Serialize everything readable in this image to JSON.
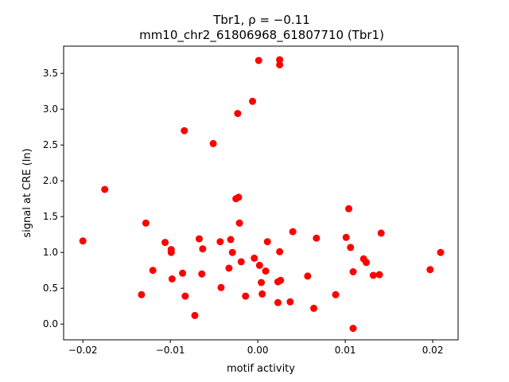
{
  "chart_data": {
    "type": "scatter",
    "title_line1": "Tbr1, ρ = −0.11",
    "title_line2": "mm10_chr2_61806968_61807710 (Tbr1)",
    "xlabel": "motif activity",
    "ylabel": "signal at CRE (ln)",
    "xlim": [
      -0.0222,
      0.0229
    ],
    "ylim": [
      -0.22,
      3.88
    ],
    "xticks": [
      {
        "value": -0.02,
        "label": "−0.02"
      },
      {
        "value": -0.01,
        "label": "−0.01"
      },
      {
        "value": 0.0,
        "label": "0.00"
      },
      {
        "value": 0.01,
        "label": "0.01"
      },
      {
        "value": 0.02,
        "label": "0.02"
      }
    ],
    "yticks": [
      {
        "value": 0.0,
        "label": "0.0"
      },
      {
        "value": 0.5,
        "label": "0.5"
      },
      {
        "value": 1.0,
        "label": "1.0"
      },
      {
        "value": 1.5,
        "label": "1.5"
      },
      {
        "value": 2.0,
        "label": "2.0"
      },
      {
        "value": 2.5,
        "label": "2.5"
      },
      {
        "value": 3.0,
        "label": "3.0"
      },
      {
        "value": 3.5,
        "label": "3.5"
      }
    ],
    "grid": false,
    "marker_color": "#ff0000",
    "points": [
      {
        "x": -0.02,
        "y": 1.16
      },
      {
        "x": -0.0175,
        "y": 1.88
      },
      {
        "x": -0.0133,
        "y": 0.41
      },
      {
        "x": -0.0128,
        "y": 1.41
      },
      {
        "x": -0.012,
        "y": 0.75
      },
      {
        "x": -0.0106,
        "y": 1.14
      },
      {
        "x": -0.0099,
        "y": 1.04
      },
      {
        "x": -0.0099,
        "y": 1.0
      },
      {
        "x": -0.0098,
        "y": 0.63
      },
      {
        "x": -0.0086,
        "y": 0.71
      },
      {
        "x": -0.0083,
        "y": 0.39
      },
      {
        "x": -0.0084,
        "y": 2.7
      },
      {
        "x": -0.0072,
        "y": 0.12
      },
      {
        "x": -0.0067,
        "y": 1.19
      },
      {
        "x": -0.0064,
        "y": 0.7
      },
      {
        "x": -0.0063,
        "y": 1.05
      },
      {
        "x": -0.0051,
        "y": 2.52
      },
      {
        "x": -0.0043,
        "y": 1.15
      },
      {
        "x": -0.0042,
        "y": 0.51
      },
      {
        "x": -0.0033,
        "y": 0.78
      },
      {
        "x": -0.0031,
        "y": 1.18
      },
      {
        "x": -0.0029,
        "y": 1.0
      },
      {
        "x": -0.0025,
        "y": 1.75
      },
      {
        "x": -0.0022,
        "y": 1.77
      },
      {
        "x": -0.0023,
        "y": 2.94
      },
      {
        "x": -0.0021,
        "y": 1.41
      },
      {
        "x": -0.0019,
        "y": 0.87
      },
      {
        "x": -0.0014,
        "y": 0.39
      },
      {
        "x": -0.0006,
        "y": 3.11
      },
      {
        "x": -0.0004,
        "y": 0.92
      },
      {
        "x": 0.0001,
        "y": 3.68
      },
      {
        "x": 0.0002,
        "y": 0.82
      },
      {
        "x": 0.0004,
        "y": 0.58
      },
      {
        "x": 0.0005,
        "y": 0.42
      },
      {
        "x": 0.0009,
        "y": 0.74
      },
      {
        "x": 0.0011,
        "y": 1.15
      },
      {
        "x": 0.0023,
        "y": 0.3
      },
      {
        "x": 0.0023,
        "y": 0.59
      },
      {
        "x": 0.0025,
        "y": 1.01
      },
      {
        "x": 0.0026,
        "y": 0.61
      },
      {
        "x": 0.0025,
        "y": 3.69
      },
      {
        "x": 0.0025,
        "y": 3.62
      },
      {
        "x": 0.0037,
        "y": 0.31
      },
      {
        "x": 0.004,
        "y": 1.29
      },
      {
        "x": 0.0057,
        "y": 0.67
      },
      {
        "x": 0.0064,
        "y": 0.22
      },
      {
        "x": 0.0067,
        "y": 1.2
      },
      {
        "x": 0.0089,
        "y": 0.41
      },
      {
        "x": 0.0101,
        "y": 1.21
      },
      {
        "x": 0.0104,
        "y": 1.61
      },
      {
        "x": 0.0106,
        "y": 1.07
      },
      {
        "x": 0.0109,
        "y": 0.73
      },
      {
        "x": 0.0109,
        "y": -0.06
      },
      {
        "x": 0.0121,
        "y": 0.91
      },
      {
        "x": 0.0124,
        "y": 0.86
      },
      {
        "x": 0.0132,
        "y": 0.68
      },
      {
        "x": 0.0139,
        "y": 0.69
      },
      {
        "x": 0.0141,
        "y": 1.27
      },
      {
        "x": 0.0197,
        "y": 0.76
      },
      {
        "x": 0.0209,
        "y": 1.0
      }
    ]
  }
}
